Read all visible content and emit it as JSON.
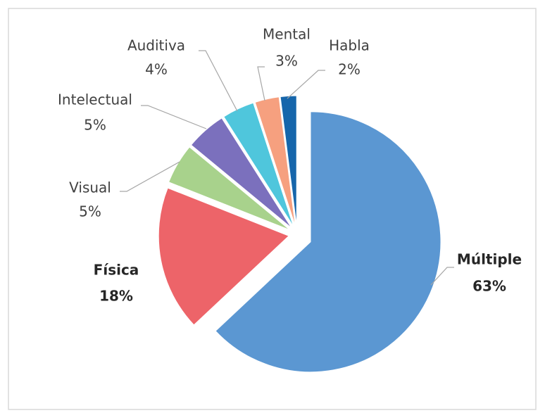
{
  "chart_data": {
    "type": "pie",
    "categories": [
      "Múltiple",
      "Física",
      "Visual",
      "Intelectual",
      "Auditiva",
      "Mental",
      "Habla"
    ],
    "values": [
      63,
      18,
      5,
      5,
      4,
      3,
      2
    ],
    "value_labels": [
      "63%",
      "18%",
      "5%",
      "5%",
      "4%",
      "3%",
      "2%"
    ],
    "colors": [
      "#5b97d2",
      "#ed6469",
      "#a8d28c",
      "#7b70bd",
      "#4fc6dc",
      "#f6a07f",
      "#1666ab"
    ],
    "start_angle": 0,
    "direction": "clockwise"
  }
}
